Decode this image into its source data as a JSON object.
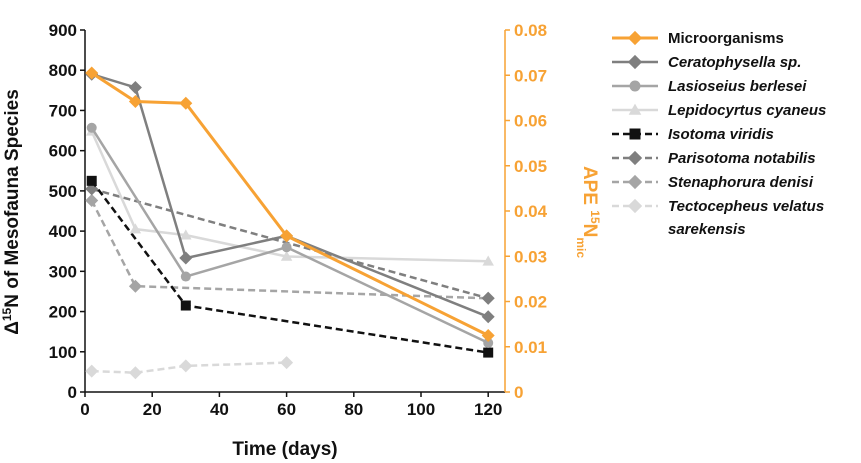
{
  "chart_data": {
    "type": "line",
    "xlabel": "Time (days)",
    "ylabel_left": {
      "prefix": "Δ",
      "sup": "15",
      "rest": "N of Mesofauna Species"
    },
    "ylabel_right": {
      "prefix": "APE ",
      "sup": "15",
      "mid": "N",
      "sub": "mic"
    },
    "xlim": [
      0,
      125
    ],
    "ylim_left": [
      0,
      900
    ],
    "ylim_right": [
      0,
      0.08
    ],
    "x_ticks": [
      "0",
      "20",
      "40",
      "60",
      "80",
      "100",
      "120"
    ],
    "y_ticks_left": [
      "0",
      "100",
      "200",
      "300",
      "400",
      "500",
      "600",
      "700",
      "800",
      "900"
    ],
    "y_ticks_right": [
      "0",
      "0.01",
      "0.02",
      "0.03",
      "0.04",
      "0.05",
      "0.06",
      "0.07",
      "0.08"
    ],
    "grid": false,
    "legend_position": "right",
    "series": [
      {
        "name": "Microorganisms",
        "axis": "right",
        "color": "#f7a234",
        "marker": "diamond",
        "dash": "solid",
        "x": [
          2,
          15,
          30,
          60,
          120
        ],
        "y": [
          0.0705,
          0.0642,
          0.0638,
          0.0345,
          0.0125
        ]
      },
      {
        "name": "Ceratophysella sp.",
        "italic": true,
        "axis": "left",
        "color": "#7f7f7f",
        "marker": "diamond",
        "dash": "solid",
        "x": [
          2,
          15,
          30,
          60,
          120
        ],
        "y": [
          790,
          757,
          333,
          388,
          187
        ]
      },
      {
        "name": "Lasioseius berlesei",
        "italic": true,
        "axis": "left",
        "color": "#a5a5a5",
        "marker": "circle",
        "dash": "solid",
        "x": [
          2,
          30,
          60,
          120
        ],
        "y": [
          657,
          287,
          360,
          122
        ]
      },
      {
        "name": "Lepidocyrtus cyaneus",
        "italic": true,
        "axis": "left",
        "color": "#d9d9d9",
        "marker": "triangle",
        "dash": "solid",
        "x": [
          2,
          15,
          30,
          60,
          120
        ],
        "y": [
          648,
          405,
          390,
          337,
          325
        ]
      },
      {
        "name": "Isotoma viridis",
        "italic": true,
        "axis": "left",
        "color": "#111111",
        "marker": "square",
        "dash": "dashed",
        "x": [
          2,
          30,
          120
        ],
        "y": [
          525,
          215,
          98
        ]
      },
      {
        "name": "Parisotoma notabilis",
        "italic": true,
        "axis": "left",
        "color": "#7f7f7f",
        "marker": "diamond",
        "dash": "dashed",
        "x": [
          2,
          120
        ],
        "y": [
          505,
          233
        ]
      },
      {
        "name": "Stenaphorura denisi",
        "italic": true,
        "axis": "left",
        "color": "#a5a5a5",
        "marker": "diamond",
        "dash": "dashed",
        "x": [
          2,
          15,
          120
        ],
        "y": [
          476,
          263,
          233
        ]
      },
      {
        "name": "Tectocepheus velatus sarekensis",
        "label_lines": [
          "Tectocepheus velatus",
          "sarekensis"
        ],
        "italic": true,
        "axis": "left",
        "color": "#d9d9d9",
        "marker": "diamond",
        "dash": "dashed",
        "x": [
          2,
          15,
          30,
          60
        ],
        "y": [
          52,
          48,
          65,
          73
        ]
      }
    ]
  }
}
